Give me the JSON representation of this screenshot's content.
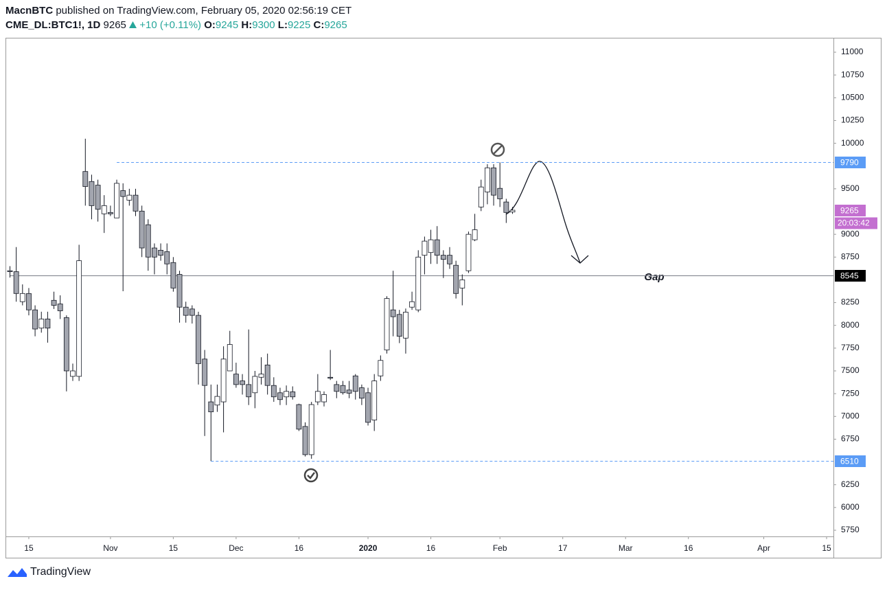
{
  "header": {
    "author": "MacnBTC",
    "text": "published on TradingView.com, February 05, 2020 02:56:19 CET"
  },
  "chart_data": {
    "type": "candlestick",
    "symbol": "CME_DL:BTC1!, 1D",
    "change": {
      "value": 10,
      "label": "+10"
    },
    "change_percent": {
      "value": 0.11,
      "label": "(+0.11%)"
    },
    "ohlc_labels": [
      "O:",
      "H:",
      "L:",
      "C:"
    ],
    "x": [
      "2019-10-10",
      "2019-10-11",
      "2019-10-14",
      "2019-10-15",
      "2019-10-16",
      "2019-10-17",
      "2019-10-18",
      "2019-10-21",
      "2019-10-22",
      "2019-10-23",
      "2019-10-24",
      "2019-10-25",
      "2019-10-28",
      "2019-10-29",
      "2019-10-30",
      "2019-10-31",
      "2019-11-01",
      "2019-11-04",
      "2019-11-05",
      "2019-11-06",
      "2019-11-07",
      "2019-11-08",
      "2019-11-11",
      "2019-11-12",
      "2019-11-13",
      "2019-11-14",
      "2019-11-15",
      "2019-11-18",
      "2019-11-19",
      "2019-11-20",
      "2019-11-21",
      "2019-11-22",
      "2019-11-25",
      "2019-11-26",
      "2019-11-27",
      "2019-11-29",
      "2019-12-02",
      "2019-12-03",
      "2019-12-04",
      "2019-12-05",
      "2019-12-06",
      "2019-12-09",
      "2019-12-10",
      "2019-12-11",
      "2019-12-12",
      "2019-12-13",
      "2019-12-16",
      "2019-12-17",
      "2019-12-18",
      "2019-12-19",
      "2019-12-20",
      "2019-12-23",
      "2019-12-24",
      "2019-12-26",
      "2019-12-27",
      "2019-12-30",
      "2019-12-31",
      "2020-01-02",
      "2020-01-03",
      "2020-01-06",
      "2020-01-07",
      "2020-01-08",
      "2020-01-09",
      "2020-01-10",
      "2020-01-13",
      "2020-01-14",
      "2020-01-15",
      "2020-01-16",
      "2020-01-17",
      "2020-01-21",
      "2020-01-22",
      "2020-01-23",
      "2020-01-24",
      "2020-01-27",
      "2020-01-28",
      "2020-01-29",
      "2020-01-30",
      "2020-01-31",
      "2020-02-03",
      "2020-02-04",
      "2020-02-05"
    ],
    "open": [
      8600,
      8590,
      8260,
      8350,
      8170,
      7970,
      8070,
      8275,
      8235,
      8085,
      7440,
      7440,
      9690,
      9580,
      9540,
      9225,
      9240,
      9180,
      9480,
      9375,
      9430,
      9255,
      9105,
      8850,
      8825,
      8810,
      8690,
      8560,
      8200,
      8180,
      8110,
      7630,
      7160,
      7125,
      7160,
      7500,
      7465,
      7390,
      7350,
      7260,
      7430,
      7565,
      7340,
      7260,
      7215,
      7270,
      7130,
      6890,
      6580,
      7160,
      7160,
      7430,
      7350,
      7340,
      7290,
      7445,
      7315,
      7260,
      6960,
      7445,
      7730,
      8170,
      8120,
      7860,
      8200,
      8170,
      8770,
      8800,
      8940,
      8770,
      8770,
      8660,
      8410,
      8600,
      8940,
      9300,
      9465,
      9730,
      9505,
      9355,
      9245
    ],
    "high": [
      8650,
      8860,
      8450,
      8410,
      8220,
      8150,
      8150,
      8370,
      8330,
      8110,
      7580,
      8885,
      10050,
      9655,
      9600,
      9430,
      9315,
      9600,
      9560,
      9500,
      9500,
      9315,
      9165,
      8900,
      8900,
      8900,
      8750,
      8600,
      8260,
      8220,
      8150,
      7730,
      7350,
      7350,
      7770,
      7940,
      7590,
      7465,
      7955,
      7500,
      7650,
      7690,
      7430,
      7315,
      7340,
      7330,
      7140,
      6935,
      7160,
      7465,
      7275,
      7730,
      7390,
      7390,
      7390,
      7465,
      7350,
      7315,
      7465,
      7670,
      8320,
      8600,
      8170,
      8185,
      8370,
      8825,
      8975,
      9050,
      9090,
      8825,
      8860,
      8710,
      8560,
      9030,
      9225,
      9600,
      9770,
      9770,
      9790,
      9390,
      9300
    ],
    "low": [
      8525,
      8260,
      8220,
      8110,
      7880,
      7920,
      7810,
      8180,
      8070,
      7275,
      7390,
      7390,
      9315,
      9165,
      9140,
      9015,
      9200,
      9180,
      8375,
      9315,
      9200,
      8750,
      8600,
      8560,
      8710,
      8560,
      8370,
      8030,
      8030,
      8020,
      7350,
      6785,
      6510,
      7050,
      6825,
      7500,
      7315,
      7240,
      7125,
      7090,
      7350,
      7240,
      7160,
      7125,
      7125,
      7185,
      6840,
      6560,
      6535,
      7125,
      7110,
      7400,
      7200,
      7240,
      7200,
      7185,
      7125,
      6900,
      6840,
      7390,
      7690,
      7880,
      7805,
      7690,
      8170,
      8145,
      8560,
      8675,
      8675,
      8520,
      8620,
      8295,
      8220,
      8575,
      8925,
      9255,
      9330,
      9315,
      9300,
      9125,
      9225
    ],
    "close": [
      8590,
      8350,
      8350,
      8170,
      7960,
      8070,
      7970,
      8220,
      8160,
      7500,
      7500,
      8710,
      9525,
      9315,
      9275,
      9315,
      9225,
      9560,
      9415,
      9430,
      9255,
      8850,
      8750,
      8750,
      8770,
      8675,
      8410,
      8200,
      8110,
      8110,
      7580,
      7340,
      7050,
      7220,
      7630,
      7790,
      7350,
      7350,
      7215,
      7440,
      7465,
      7340,
      7215,
      7185,
      7275,
      7215,
      6860,
      6580,
      7130,
      7275,
      7240,
      7420,
      7275,
      7260,
      7255,
      7275,
      7200,
      6935,
      7390,
      7615,
      8295,
      8095,
      7880,
      8145,
      8260,
      8750,
      8925,
      8940,
      8770,
      8725,
      8675,
      8350,
      8500,
      9000,
      9050,
      9520,
      9730,
      9430,
      9390,
      9240,
      9265
    ],
    "up_color": "#ffffff",
    "down_color": "#a3a6af",
    "border_color": "#131722",
    "ylim": [
      5682,
      11151
    ],
    "yticks": [
      5750,
      6000,
      6250,
      6750,
      7000,
      7250,
      7500,
      7750,
      8000,
      8250,
      8750,
      9000,
      9500,
      10000,
      10250,
      10500,
      10750,
      11000
    ],
    "xticks": [
      {
        "value": "2019-10-15",
        "label": "15"
      },
      {
        "value": "2019-11-01",
        "label": "Nov"
      },
      {
        "value": "2019-11-15",
        "label": "15"
      },
      {
        "value": "2019-12-02",
        "label": "Dec"
      },
      {
        "value": "2019-12-16",
        "label": "16"
      },
      {
        "value": "2020-01-02",
        "label": "2020"
      },
      {
        "value": "2020-01-16",
        "label": "16"
      },
      {
        "value": "2020-02-03",
        "label": "Feb"
      },
      {
        "value": "2020-02-17",
        "label": "17"
      },
      {
        "value": "2020-03-02",
        "label": "Mar"
      },
      {
        "value": "2020-03-16",
        "label": "16"
      },
      {
        "value": "2020-04-01",
        "label": "Apr"
      },
      {
        "value": "2020-04-15",
        "label": "15"
      }
    ],
    "price_lines": [
      {
        "value": 9790,
        "from": "2019-11-04",
        "color": "#5b9cf6",
        "style": "dashed"
      },
      {
        "value": 8545,
        "from": "2019-10-10",
        "color": "#787b86",
        "style": "solid",
        "label_color": "#000000"
      },
      {
        "value": 6510,
        "from": "2019-11-25",
        "color": "#5b9cf6",
        "style": "dashed"
      }
    ],
    "last_price_color": "#c36fd0",
    "countdown": "20:03:42",
    "annotation": "Gap"
  },
  "footer": {
    "brand": "TradingView"
  }
}
